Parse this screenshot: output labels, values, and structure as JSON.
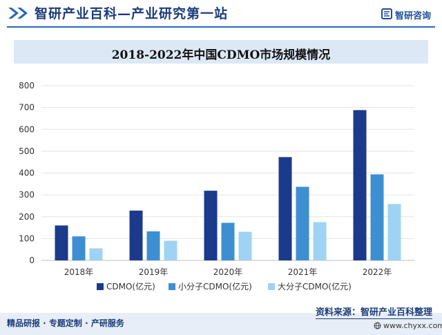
{
  "header": {
    "title": "智研产业百科—产业研究第一站",
    "logo_text": "智研咨询"
  },
  "chart_data": {
    "type": "bar",
    "title": "2018-2022年中国CDMO市场规模情况",
    "categories": [
      "2018年",
      "2019年",
      "2020年",
      "2021年",
      "2022年"
    ],
    "series": [
      {
        "name": "CDMO(亿元)",
        "color": "#1b3a8c",
        "values": [
          160,
          228,
          319,
          473,
          688
        ]
      },
      {
        "name": "小分子CDMO(亿元)",
        "color": "#3d8fd1",
        "values": [
          110,
          133,
          172,
          337,
          394
        ]
      },
      {
        "name": "大分子CDMO(亿元)",
        "color": "#9ed3f3",
        "values": [
          55,
          90,
          131,
          175,
          258
        ]
      }
    ],
    "y_ticks": [
      "0",
      "100",
      "200",
      "300",
      "400",
      "500",
      "600",
      "700",
      "800"
    ],
    "ylim": [
      0,
      800
    ],
    "grid": true,
    "legend": "bottom"
  },
  "footer": {
    "left": "精品研报 · 专题定制 · 产研服务",
    "source": "资料来源：智研产业百科整理",
    "url": "www.chyxx.com"
  }
}
